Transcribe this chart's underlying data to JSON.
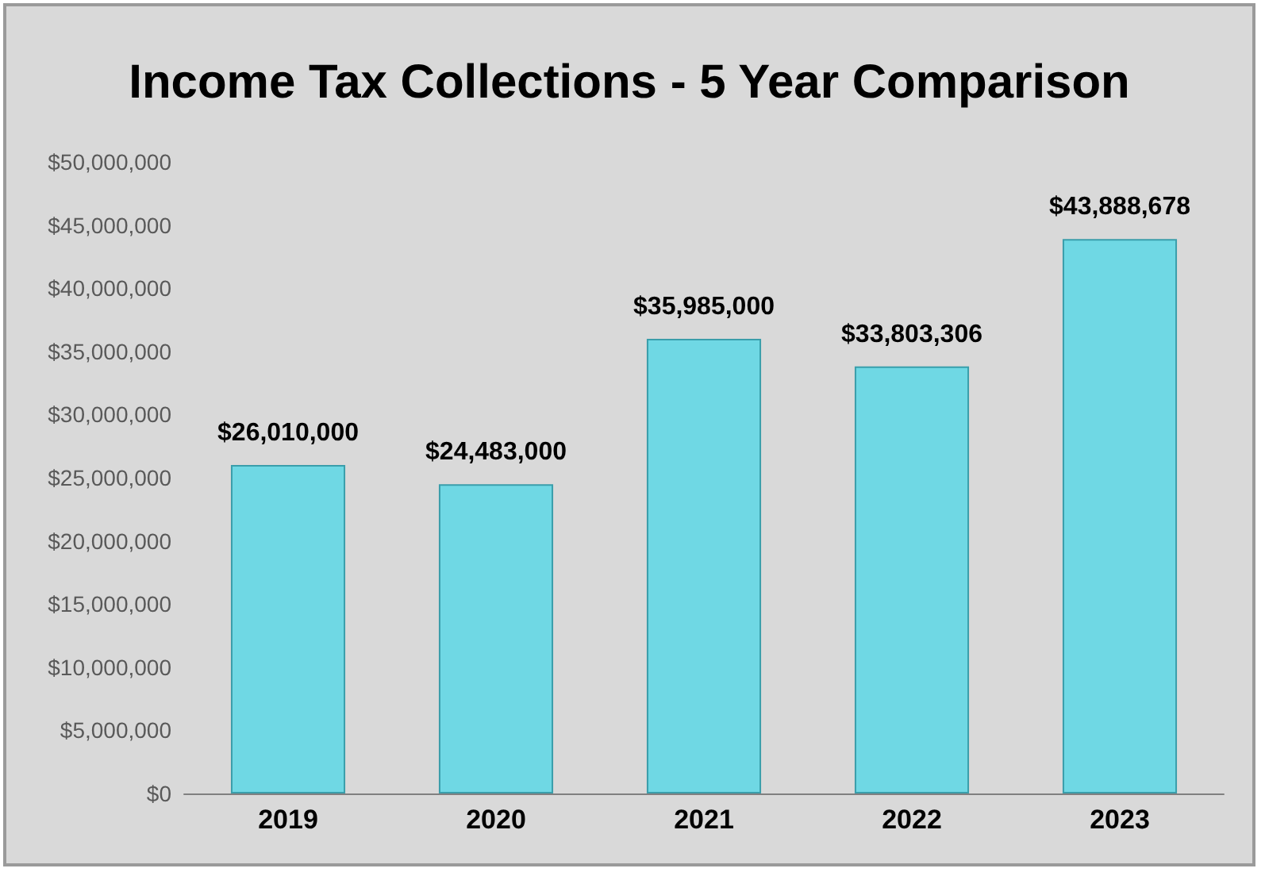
{
  "chart_data": {
    "type": "bar",
    "title": "Income Tax Collections - 5 Year Comparison",
    "categories": [
      "2019",
      "2020",
      "2021",
      "2022",
      "2023"
    ],
    "values": [
      26010000,
      24483000,
      35985000,
      33803306,
      43888678
    ],
    "value_labels": [
      "$26,010,000",
      "$24,483,000",
      "$35,985,000",
      "$33,803,306",
      "$43,888,678"
    ],
    "color": "#6fd8e4",
    "ylim": [
      0,
      50000000
    ],
    "yticks": [
      {
        "value": 0,
        "label": "$0"
      },
      {
        "value": 5000000,
        "label": "$5,000,000"
      },
      {
        "value": 10000000,
        "label": "$10,000,000"
      },
      {
        "value": 15000000,
        "label": "$15,000,000"
      },
      {
        "value": 20000000,
        "label": "$20,000,000"
      },
      {
        "value": 25000000,
        "label": "$25,000,000"
      },
      {
        "value": 30000000,
        "label": "$30,000,000"
      },
      {
        "value": 35000000,
        "label": "$35,000,000"
      },
      {
        "value": 40000000,
        "label": "$40,000,000"
      },
      {
        "value": 45000000,
        "label": "$45,000,000"
      },
      {
        "value": 50000000,
        "label": "$50,000,000"
      }
    ],
    "grid": false
  }
}
